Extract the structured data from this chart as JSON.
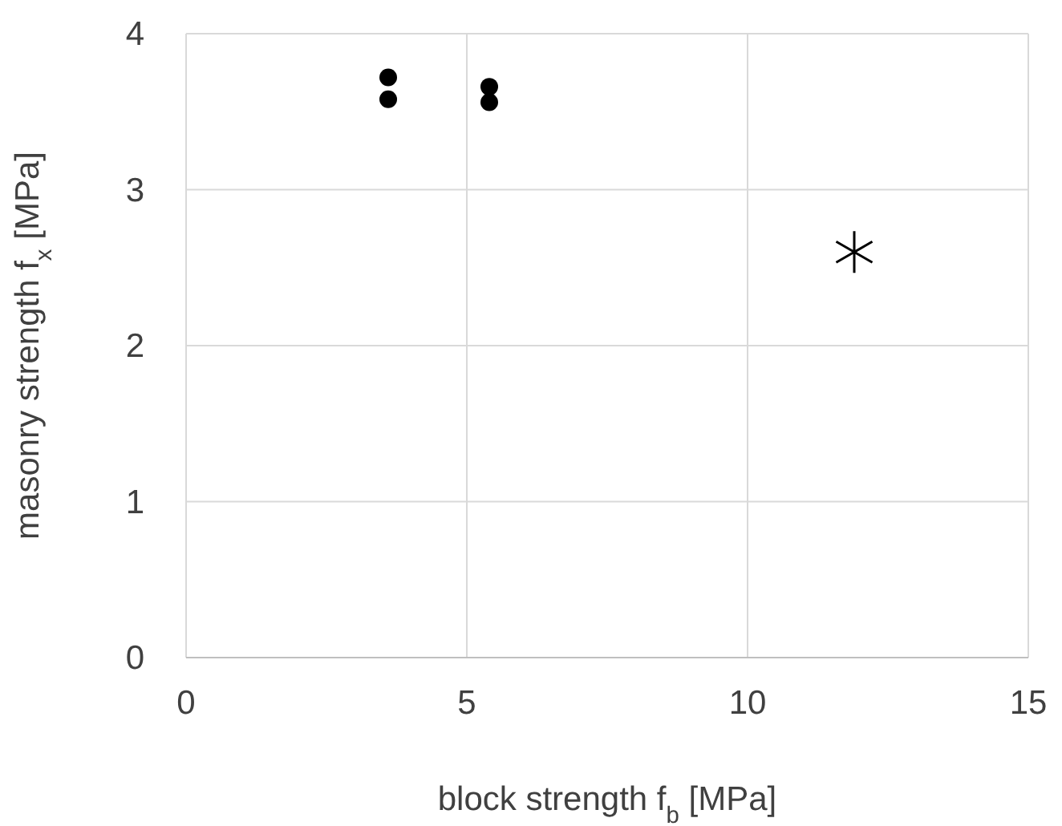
{
  "chart_data": {
    "type": "scatter",
    "xlabel": "block strength f$_{b}$ [MPa]",
    "ylabel": "masonry strength f$_{x}$ [MPa]",
    "xlim": [
      0,
      15
    ],
    "xticks": [
      0,
      5,
      10,
      15
    ],
    "ylim": [
      0,
      4
    ],
    "yticks": [
      0,
      1,
      2,
      3,
      4
    ],
    "grid": true,
    "series": [
      {
        "color": "#000000",
        "marker": "circle",
        "x": [
          3.6,
          3.6,
          5.4,
          5.4
        ],
        "values": [
          3.72,
          3.58,
          3.66,
          3.56
        ]
      },
      {
        "color": "#000000",
        "marker": "cross",
        "x": [
          11.9
        ],
        "values": [
          2.6
        ]
      }
    ]
  }
}
